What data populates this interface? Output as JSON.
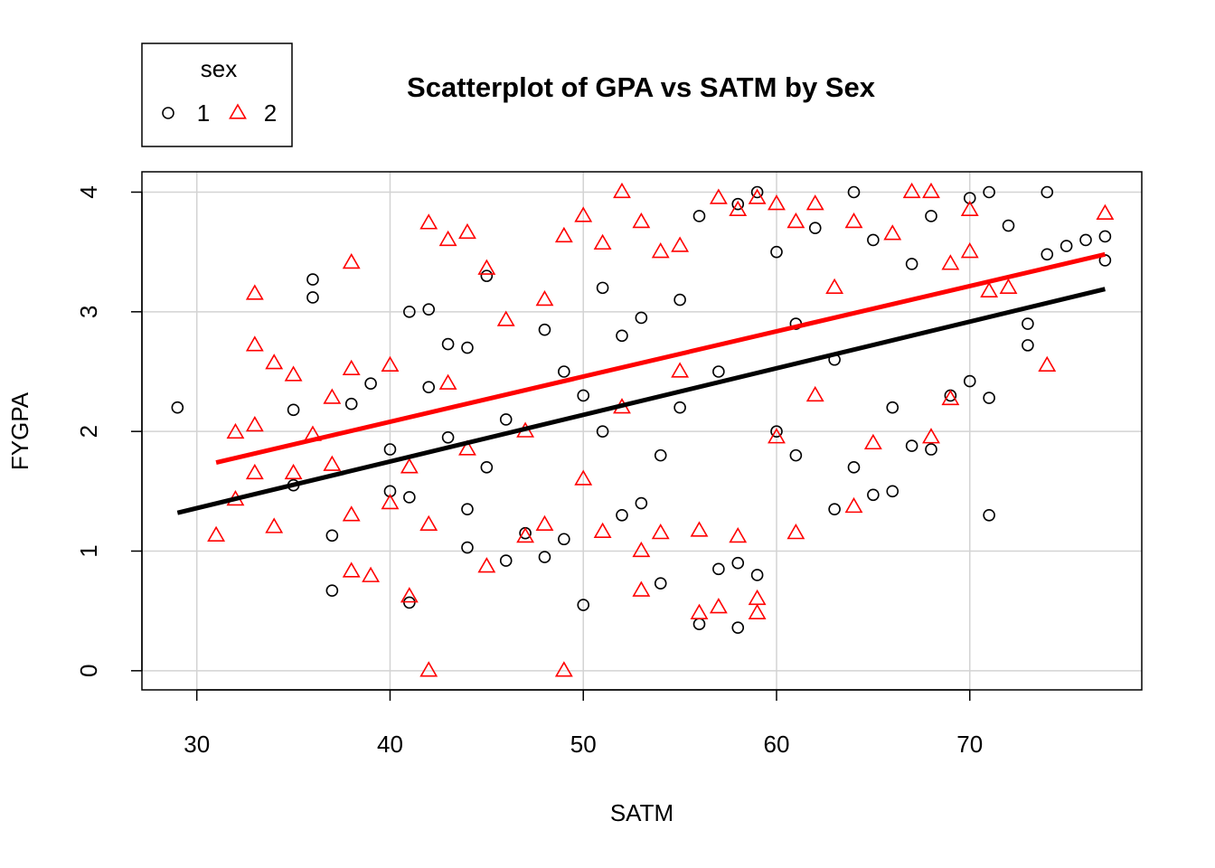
{
  "chart_data": {
    "type": "scatter",
    "title": "Scatterplot of GPA vs SATM by Sex",
    "x_label": "SATM",
    "y_label": "FYGPA",
    "xlim": [
      27.16,
      78.9
    ],
    "ylim": [
      -0.16,
      4.17
    ],
    "xticks": [
      30,
      40,
      50,
      60,
      70
    ],
    "yticks": [
      0,
      1,
      2,
      3,
      4
    ],
    "grid": true,
    "legend": "top-left",
    "legend_title": "sex",
    "series": [
      {
        "name": "1",
        "color": "#000000",
        "marker": "circle",
        "x": [
          29,
          35,
          35,
          36,
          36,
          37,
          37,
          38,
          39,
          40,
          40,
          41,
          41,
          41,
          42,
          42,
          43,
          43,
          44,
          44,
          44,
          45,
          45,
          46,
          46,
          47,
          48,
          48,
          49,
          49,
          50,
          50,
          51,
          51,
          52,
          52,
          53,
          53,
          54,
          54,
          55,
          55,
          56,
          56,
          57,
          57,
          58,
          58,
          58,
          59,
          59,
          60,
          60,
          61,
          61,
          62,
          63,
          63,
          64,
          64,
          65,
          65,
          66,
          66,
          67,
          67,
          68,
          68,
          69,
          70,
          70,
          71,
          71,
          71,
          72,
          73,
          73,
          74,
          74,
          75,
          76,
          77,
          77
        ],
        "values": [
          2.2,
          1.55,
          2.18,
          3.27,
          3.12,
          1.13,
          0.67,
          2.23,
          2.4,
          1.85,
          1.5,
          0.57,
          1.45,
          3.0,
          3.02,
          2.37,
          2.73,
          1.95,
          1.03,
          2.7,
          1.35,
          3.3,
          1.7,
          2.1,
          0.92,
          1.15,
          0.95,
          2.85,
          1.1,
          2.5,
          0.55,
          2.3,
          2.0,
          3.2,
          1.3,
          2.8,
          1.4,
          2.95,
          0.73,
          1.8,
          2.2,
          3.1,
          0.39,
          3.8,
          0.85,
          2.5,
          0.36,
          0.9,
          3.9,
          0.8,
          4.0,
          2.0,
          3.5,
          1.8,
          2.9,
          3.7,
          1.35,
          2.6,
          4.0,
          1.7,
          1.47,
          3.6,
          1.5,
          2.2,
          1.88,
          3.4,
          3.8,
          1.85,
          2.3,
          3.95,
          2.42,
          1.3,
          4.0,
          2.28,
          3.72,
          2.9,
          2.72,
          4.0,
          3.48,
          3.55,
          3.6,
          3.63,
          3.43
        ]
      },
      {
        "name": "2",
        "color": "#ff0000",
        "marker": "triangle",
        "x": [
          31,
          32,
          32,
          33,
          33,
          33,
          33,
          34,
          34,
          35,
          35,
          36,
          37,
          37,
          38,
          38,
          38,
          38,
          39,
          40,
          40,
          41,
          41,
          42,
          42,
          42,
          43,
          43,
          44,
          44,
          45,
          45,
          46,
          47,
          47,
          48,
          48,
          49,
          49,
          50,
          50,
          51,
          51,
          52,
          52,
          53,
          53,
          53,
          54,
          54,
          55,
          55,
          56,
          56,
          57,
          57,
          58,
          58,
          59,
          59,
          59,
          60,
          60,
          61,
          61,
          62,
          62,
          63,
          64,
          64,
          65,
          66,
          67,
          68,
          68,
          69,
          69,
          70,
          70,
          71,
          72,
          74,
          77
        ],
        "values": [
          1.13,
          1.43,
          1.99,
          3.15,
          2.72,
          2.05,
          1.65,
          1.2,
          2.57,
          2.47,
          1.65,
          1.97,
          2.28,
          1.72,
          3.41,
          0.83,
          1.3,
          2.52,
          0.79,
          2.55,
          1.4,
          0.62,
          1.7,
          3.74,
          0.0,
          1.22,
          3.6,
          2.4,
          3.66,
          1.85,
          3.36,
          0.87,
          2.93,
          1.12,
          2.0,
          3.1,
          1.22,
          3.63,
          0.0,
          3.8,
          1.6,
          3.57,
          1.16,
          4.0,
          2.2,
          3.75,
          0.67,
          1.0,
          3.5,
          1.15,
          3.55,
          2.5,
          0.48,
          1.17,
          3.95,
          0.53,
          3.85,
          1.12,
          3.95,
          0.48,
          0.6,
          3.9,
          1.95,
          1.15,
          3.75,
          3.9,
          2.3,
          3.2,
          1.37,
          3.75,
          1.9,
          3.65,
          4.0,
          4.0,
          1.95,
          2.27,
          3.4,
          3.85,
          3.5,
          3.17,
          3.2,
          2.55,
          3.82
        ]
      }
    ],
    "fit_lines": [
      {
        "color": "#000000",
        "x": [
          29,
          77
        ],
        "values": [
          1.32,
          3.19
        ]
      },
      {
        "color": "#ff0000",
        "x": [
          31,
          77
        ],
        "values": [
          1.74,
          3.48
        ]
      }
    ]
  }
}
